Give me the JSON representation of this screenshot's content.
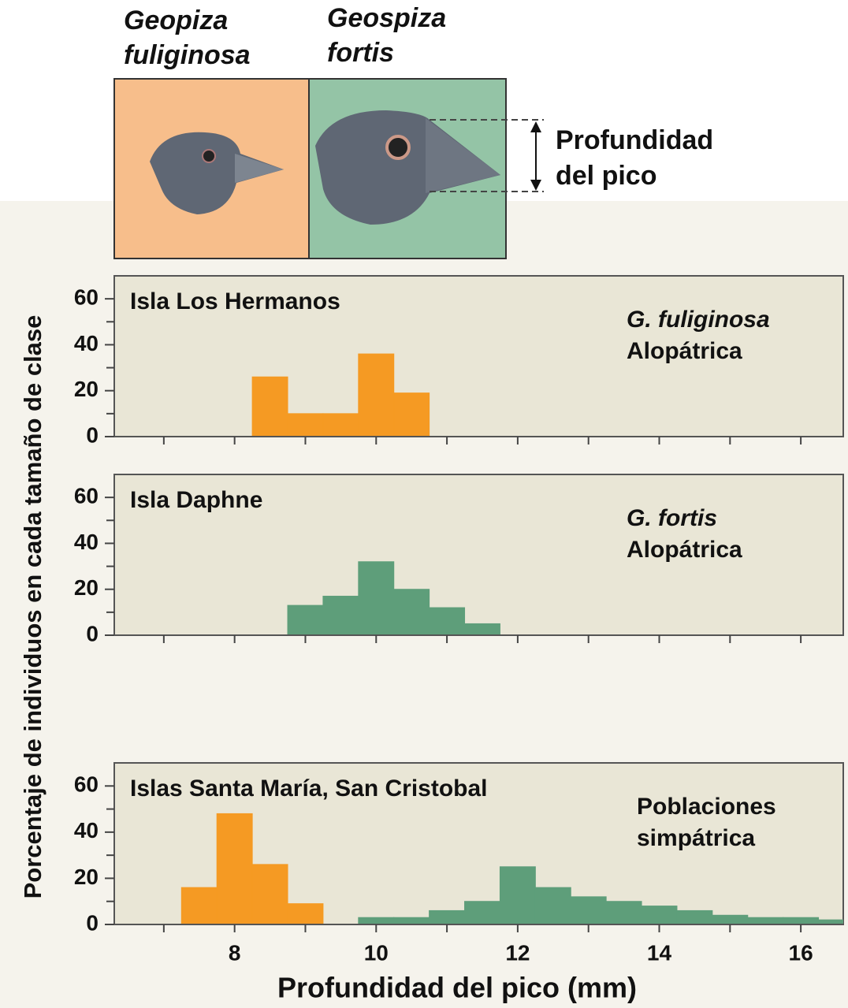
{
  "header": {
    "species_left": [
      "Geopiza",
      "fuliginosa"
    ],
    "species_right": [
      "Geospiza",
      "fortis"
    ],
    "measure_label": [
      "Profundidad",
      "del pico"
    ]
  },
  "chart_data": [
    {
      "type": "histogram",
      "title": "Isla Los Hermanos",
      "ylabel": "Porcentaje de individuos en cada tamaño de clase",
      "annotations": [
        {
          "text": "G. fuliginosa",
          "color": "#111111",
          "italic": true
        },
        {
          "text": "Alopátrica",
          "color": "#1010e0",
          "italic": false
        }
      ],
      "series": [
        {
          "color": "#f59a23",
          "bins": [
            8.25,
            8.75,
            9.25,
            9.75,
            10.25,
            10.75
          ],
          "values": [
            26,
            10,
            10,
            36,
            19
          ]
        }
      ],
      "xlim": [
        6.3,
        16.6
      ],
      "xticks": [
        8,
        10,
        12,
        14,
        16
      ],
      "xminor": [
        7,
        9,
        11,
        13,
        15
      ],
      "show_xtick_labels": false,
      "ylim": [
        0,
        70
      ],
      "yticks": [
        0,
        20,
        40,
        60
      ],
      "yminor": [
        10,
        30,
        50
      ]
    },
    {
      "type": "histogram",
      "title": "Isla Daphne",
      "annotations": [
        {
          "text": "G. fortis",
          "color": "#111111",
          "italic": true
        },
        {
          "text": "Alopátrica",
          "color": "#e01010",
          "italic": false
        }
      ],
      "series": [
        {
          "color": "#5e9e7a",
          "bins": [
            8.75,
            9.25,
            9.75,
            10.25,
            10.75,
            11.25,
            11.75
          ],
          "values": [
            13,
            17,
            32,
            20,
            12,
            5
          ]
        }
      ],
      "xlim": [
        6.3,
        16.6
      ],
      "xticks": [
        8,
        10,
        12,
        14,
        16
      ],
      "xminor": [
        7,
        9,
        11,
        13,
        15
      ],
      "show_xtick_labels": false,
      "ylim": [
        0,
        70
      ],
      "yticks": [
        0,
        20,
        40,
        60
      ],
      "yminor": [
        10,
        30,
        50
      ]
    },
    {
      "type": "histogram",
      "title": "Islas Santa María, San Cristobal",
      "xlabel": "Profundidad del pico (mm)",
      "annotations": [
        {
          "text": "Poblaciones",
          "color": "#1a7a1a",
          "italic": false
        },
        {
          "text": "simpátrica",
          "color": "#1a7a1a",
          "italic": false
        }
      ],
      "series": [
        {
          "color": "#f59a23",
          "bins": [
            7.25,
            7.75,
            8.25,
            8.75,
            9.25
          ],
          "values": [
            16,
            48,
            26,
            9
          ]
        },
        {
          "color": "#5e9e7a",
          "bins": [
            9.75,
            10.25,
            10.75,
            11.25,
            11.75,
            12.25,
            12.75,
            13.25,
            13.75,
            14.25,
            14.75,
            15.25,
            15.75,
            16.25,
            16.75
          ],
          "values": [
            3,
            3,
            6,
            10,
            25,
            16,
            12,
            10,
            8,
            6,
            4,
            3,
            3,
            2
          ]
        }
      ],
      "xlim": [
        6.3,
        16.6
      ],
      "xticks": [
        8,
        10,
        12,
        14,
        16
      ],
      "xminor": [
        7,
        9,
        11,
        13,
        15
      ],
      "show_xtick_labels": true,
      "ylim": [
        0,
        70
      ],
      "yticks": [
        0,
        20,
        40,
        60
      ],
      "yminor": [
        10,
        30,
        50
      ]
    }
  ]
}
